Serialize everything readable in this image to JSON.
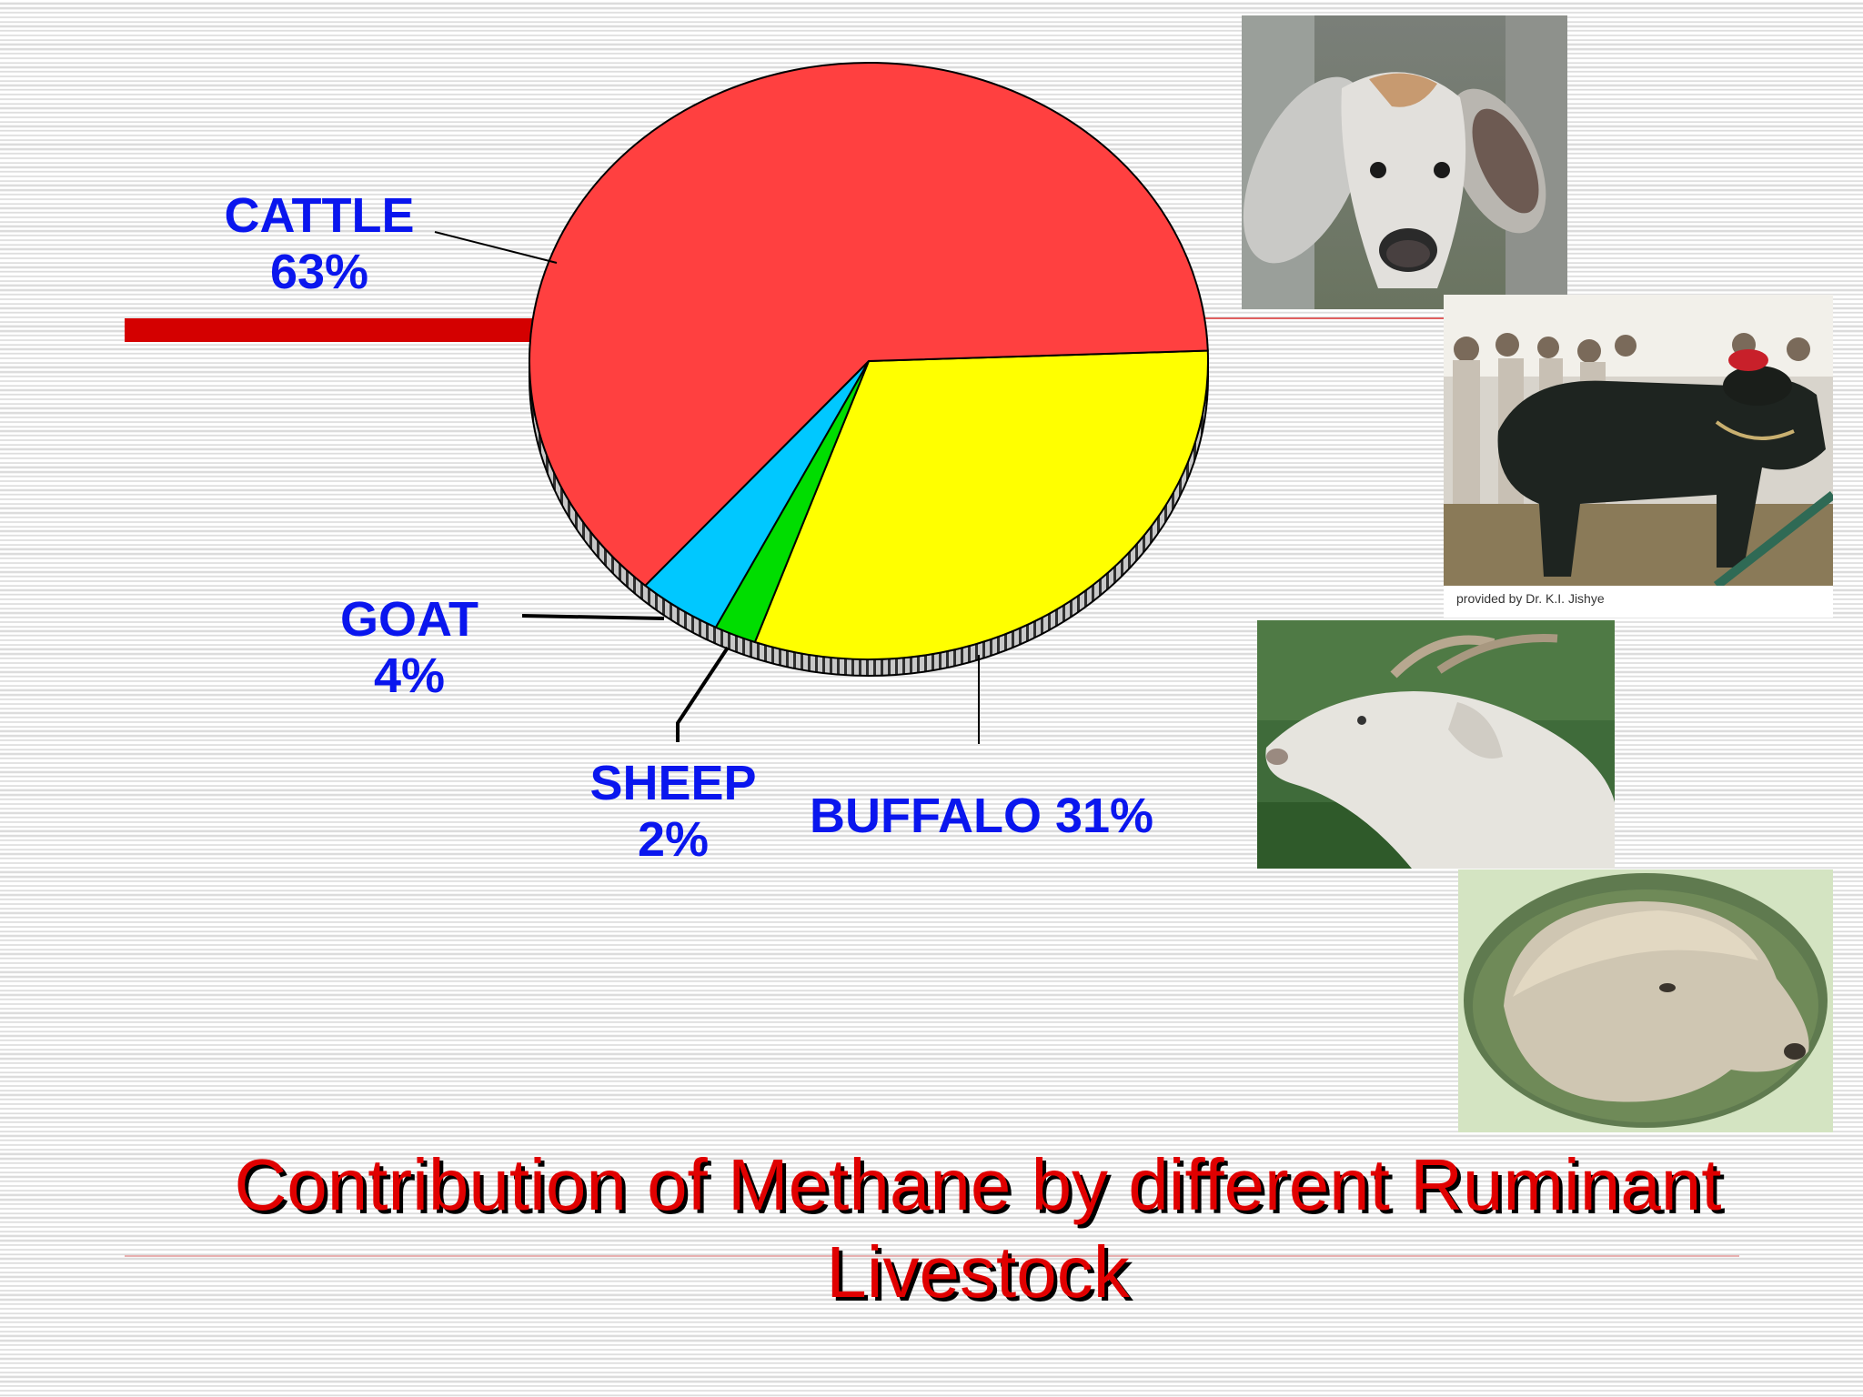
{
  "title": "Contribution of Methane by different Ruminant Livestock",
  "colors": {
    "cattle": "#ff4040",
    "buffalo": "#ffff00",
    "sheep": "#00dd00",
    "goat": "#00c8ff",
    "label": "#0a16ee",
    "title": "#e00000"
  },
  "chart_data": {
    "type": "pie",
    "title": "Contribution of Methane by different Ruminant Livestock",
    "slices": [
      {
        "name": "CATTLE",
        "value": 63,
        "label": "63%",
        "color": "#ff4040"
      },
      {
        "name": "BUFFALO",
        "value": 31,
        "label": "31%",
        "color": "#ffff00"
      },
      {
        "name": "SHEEP",
        "value": 2,
        "label": "2%",
        "color": "#00dd00"
      },
      {
        "name": "GOAT",
        "value": 4,
        "label": "4%",
        "color": "#00c8ff"
      }
    ]
  },
  "labels": {
    "cattle": {
      "name": "CATTLE",
      "pct": "63%"
    },
    "goat": {
      "name": "GOAT",
      "pct": "4%"
    },
    "sheep": {
      "name": "SHEEP",
      "pct": "2%"
    },
    "buffalo": {
      "text": "BUFFALO 31%"
    }
  },
  "photos": [
    {
      "name": "cattle-photo"
    },
    {
      "name": "buffalo-photo",
      "caption": "provided by Dr. K.I. Jishye"
    },
    {
      "name": "goat-photo"
    },
    {
      "name": "sheep-photo"
    }
  ]
}
